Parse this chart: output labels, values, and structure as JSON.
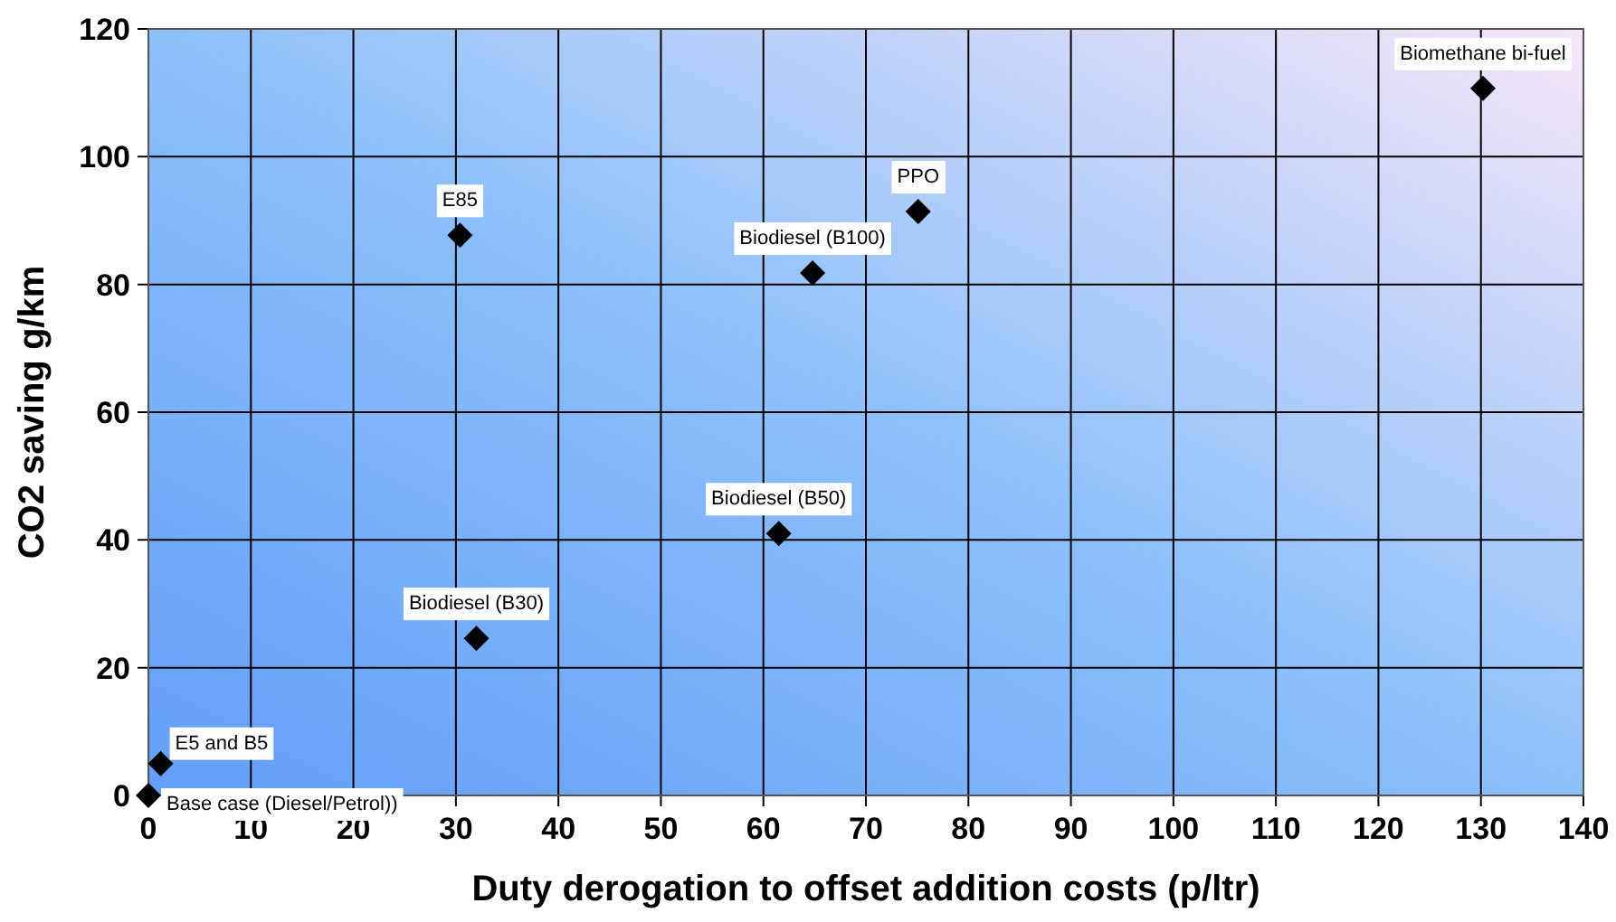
{
  "chart_data": {
    "type": "scatter",
    "xlabel": "Duty derogation to offset addition costs (p/ltr)",
    "ylabel": "CO2 saving g/km",
    "x": [
      0,
      1.2,
      30.4,
      32,
      61.5,
      64.8,
      75.1,
      130.2
    ],
    "series": [
      {
        "color": "#000000",
        "values": [
          0,
          5,
          87.7,
          24.6,
          41,
          81.8,
          91.4,
          110.7
        ]
      }
    ],
    "xlim": [
      0,
      140
    ],
    "xticks": [
      0,
      10,
      20,
      30,
      40,
      50,
      60,
      70,
      80,
      90,
      100,
      110,
      120,
      130,
      140
    ],
    "ylim": [
      0,
      120
    ],
    "yticks": [
      0,
      20,
      40,
      60,
      80,
      100,
      120
    ],
    "grid": true,
    "marker": "diamond",
    "annotations": [
      {
        "text": "Base case (Diesel/Petrol))",
        "x": 0,
        "y": 0
      },
      {
        "text": "E5 and B5",
        "x": 1.2,
        "y": 5
      },
      {
        "text": "E85",
        "x": 30.4,
        "y": 87.7
      },
      {
        "text": "Biodiesel (B30)",
        "x": 32,
        "y": 24.6
      },
      {
        "text": "Biodiesel (B50)",
        "x": 61.5,
        "y": 41
      },
      {
        "text": "Biodiesel (B100)",
        "x": 64.8,
        "y": 81.8
      },
      {
        "text": "PPO",
        "x": 75.1,
        "y": 91.4
      },
      {
        "text": "Biomethane bi-fuel",
        "x": 130.2,
        "y": 110.7
      }
    ]
  }
}
